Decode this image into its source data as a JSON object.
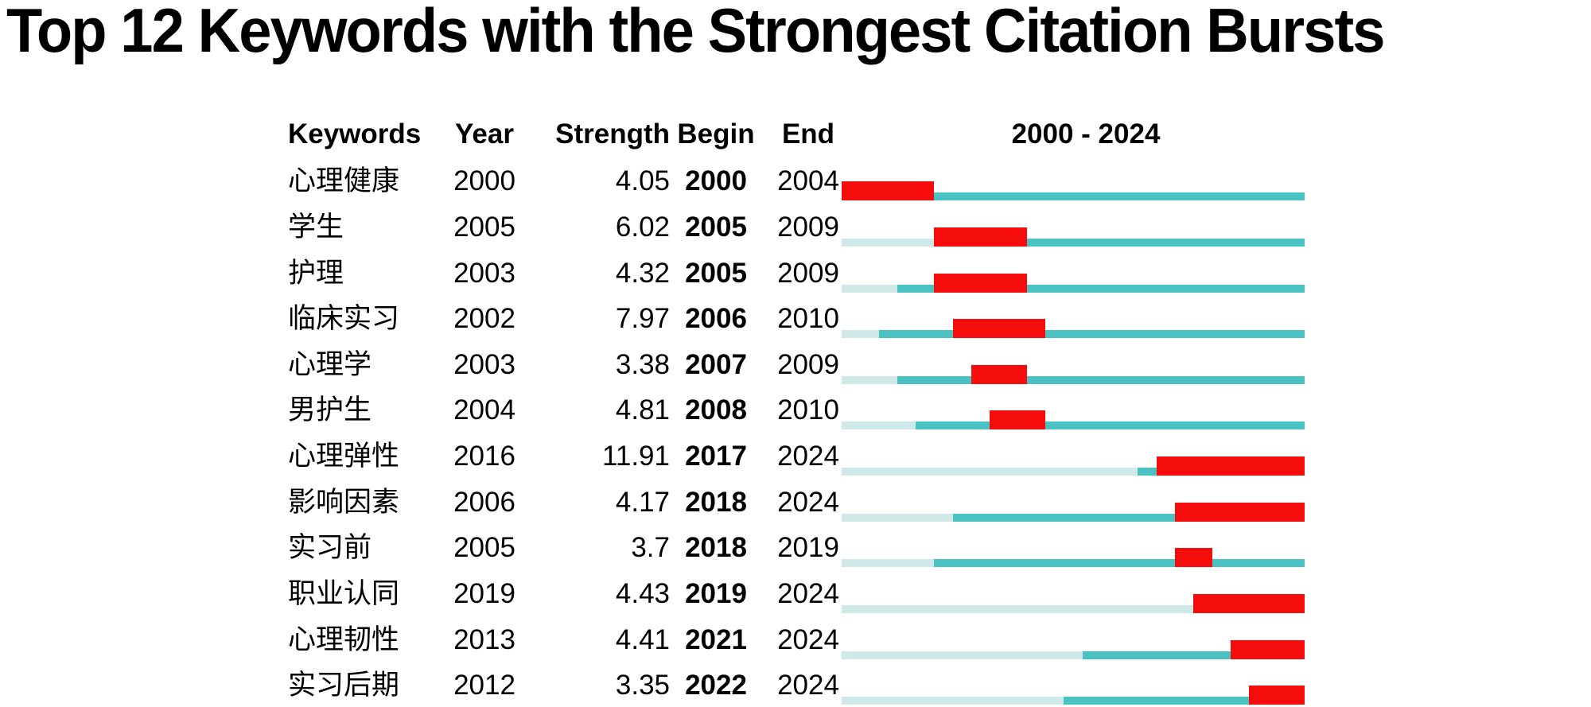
{
  "chart_data": {
    "type": "table",
    "title": "Top 12 Keywords with the Strongest Citation Bursts",
    "headers": {
      "keyword": "Keywords",
      "year": "Year",
      "strength": "Strength",
      "begin": "Begin",
      "end": "End",
      "timeline": "2000 - 2024"
    },
    "axis_range": [
      2000,
      2024
    ],
    "colors": {
      "burst": "#F50D0D",
      "active": "#4AC2C2",
      "inactive": "#CFE9E9"
    },
    "legend_note": "",
    "rows": [
      {
        "keyword": "心理健康",
        "year": 2000,
        "strength": "4.05",
        "begin": 2000,
        "end": 2004
      },
      {
        "keyword": "学生",
        "year": 2005,
        "strength": "6.02",
        "begin": 2005,
        "end": 2009
      },
      {
        "keyword": "护理",
        "year": 2003,
        "strength": "4.32",
        "begin": 2005,
        "end": 2009
      },
      {
        "keyword": "临床实习",
        "year": 2002,
        "strength": "7.97",
        "begin": 2006,
        "end": 2010
      },
      {
        "keyword": "心理学",
        "year": 2003,
        "strength": "3.38",
        "begin": 2007,
        "end": 2009
      },
      {
        "keyword": "男护生",
        "year": 2004,
        "strength": "4.81",
        "begin": 2008,
        "end": 2010
      },
      {
        "keyword": "心理弹性",
        "year": 2016,
        "strength": "11.91",
        "begin": 2017,
        "end": 2024
      },
      {
        "keyword": "影响因素",
        "year": 2006,
        "strength": "4.17",
        "begin": 2018,
        "end": 2024
      },
      {
        "keyword": "实习前",
        "year": 2005,
        "strength": "3.7",
        "begin": 2018,
        "end": 2019
      },
      {
        "keyword": "职业认同",
        "year": 2019,
        "strength": "4.43",
        "begin": 2019,
        "end": 2024
      },
      {
        "keyword": "心理韧性",
        "year": 2013,
        "strength": "4.41",
        "begin": 2021,
        "end": 2024
      },
      {
        "keyword": "实习后期",
        "year": 2012,
        "strength": "3.35",
        "begin": 2022,
        "end": 2024
      }
    ],
    "layout": {
      "row_top_start": 199.2,
      "row_spacing": 57.65
    }
  }
}
